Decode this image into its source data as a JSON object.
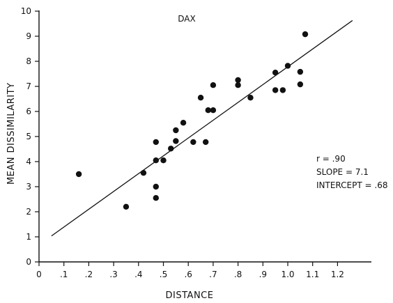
{
  "chart_data": {
    "type": "scatter",
    "title": "DAX",
    "xlabel": "DISTANCE",
    "ylabel_parts": [
      "MEAN",
      "DISSIMILARITY"
    ],
    "xlim": [
      0,
      1.3
    ],
    "ylim": [
      0,
      10
    ],
    "x_ticks": [
      0,
      0.1,
      0.2,
      0.3,
      0.4,
      0.5,
      0.6,
      0.7,
      0.8,
      0.9,
      1.0,
      1.1,
      1.2
    ],
    "x_tick_labels": [
      "0",
      ".1",
      ".2",
      ".3",
      ".4",
      ".5",
      ".6",
      ".7",
      ".8",
      ".9",
      "1.0",
      "1.1",
      "1.2"
    ],
    "y_ticks": [
      0,
      1,
      2,
      3,
      4,
      5,
      6,
      7,
      8,
      9,
      10
    ],
    "y_tick_labels": [
      "0",
      "1",
      "2",
      "3",
      "4",
      "5",
      "6",
      "7",
      "8",
      "9",
      "10"
    ],
    "points": [
      {
        "x": 0.16,
        "y": 3.5
      },
      {
        "x": 0.35,
        "y": 2.2
      },
      {
        "x": 0.42,
        "y": 3.55
      },
      {
        "x": 0.47,
        "y": 2.55
      },
      {
        "x": 0.47,
        "y": 3.0
      },
      {
        "x": 0.47,
        "y": 4.05
      },
      {
        "x": 0.47,
        "y": 4.78
      },
      {
        "x": 0.5,
        "y": 4.05
      },
      {
        "x": 0.53,
        "y": 4.52
      },
      {
        "x": 0.55,
        "y": 4.82
      },
      {
        "x": 0.55,
        "y": 5.25
      },
      {
        "x": 0.58,
        "y": 5.55
      },
      {
        "x": 0.62,
        "y": 4.78
      },
      {
        "x": 0.65,
        "y": 6.55
      },
      {
        "x": 0.67,
        "y": 4.78
      },
      {
        "x": 0.68,
        "y": 6.05
      },
      {
        "x": 0.7,
        "y": 6.05
      },
      {
        "x": 0.7,
        "y": 7.05
      },
      {
        "x": 0.8,
        "y": 7.05
      },
      {
        "x": 0.8,
        "y": 7.25
      },
      {
        "x": 0.85,
        "y": 6.55
      },
      {
        "x": 0.95,
        "y": 6.85
      },
      {
        "x": 0.95,
        "y": 7.55
      },
      {
        "x": 0.98,
        "y": 6.85
      },
      {
        "x": 1.0,
        "y": 7.82
      },
      {
        "x": 1.05,
        "y": 7.08
      },
      {
        "x": 1.05,
        "y": 7.58
      },
      {
        "x": 1.07,
        "y": 9.08
      }
    ],
    "regression": {
      "slope": 7.1,
      "intercept": 0.68,
      "x_range": [
        0.05,
        1.26
      ]
    },
    "grid": false,
    "annotations": [
      "r = .90",
      "SLOPE = 7.1",
      "INTERCEPT = .68"
    ]
  }
}
